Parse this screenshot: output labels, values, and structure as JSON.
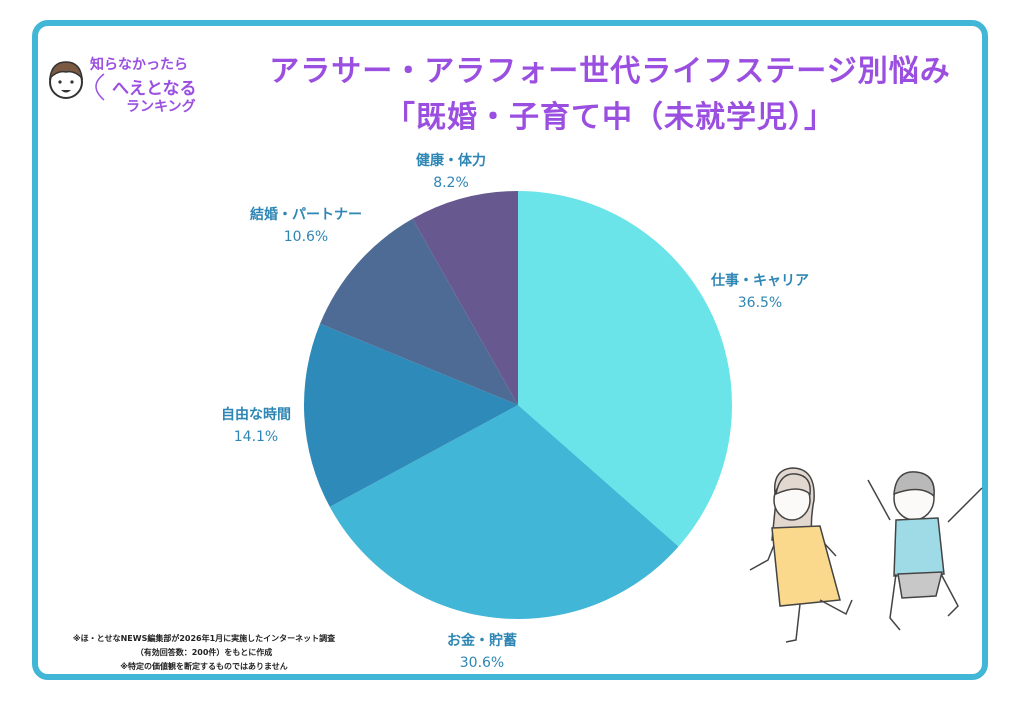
{
  "badge": {
    "line1": "知らなかったら",
    "line2": "へえとなる",
    "line3": "ランキング"
  },
  "title": {
    "line1": "アラサー・アラフォー世代ライフステージ別悩み",
    "line2": "「既婚・子育て中（未就学児）」"
  },
  "footnote": {
    "line1": "※ほ・とせなNEWS編集部が2026年1月に実施したインターネット調査",
    "line2": "（有効回答数：200件）をもとに作成",
    "line3": "※特定の価値観を断定するものではありません"
  },
  "colors": {
    "frame": "#41b6d6",
    "title": "#9b4fe0",
    "label": "#2e86b4"
  },
  "chart_data": {
    "type": "pie",
    "slices": [
      {
        "label": "仕事・キャリア",
        "value": 36.5,
        "display": "36.5%",
        "color": "#6ae4e9"
      },
      {
        "label": "お金・貯蓄",
        "value": 30.6,
        "display": "30.6%",
        "color": "#42b6d6"
      },
      {
        "label": "自由な時間",
        "value": 14.1,
        "display": "14.1%",
        "color": "#2d8ab9"
      },
      {
        "label": "結婚・パートナー",
        "value": 10.6,
        "display": "10.6%",
        "color": "#4e6b96"
      },
      {
        "label": "健康・体力",
        "value": 8.2,
        "display": "8.2%",
        "color": "#67588f"
      }
    ]
  }
}
